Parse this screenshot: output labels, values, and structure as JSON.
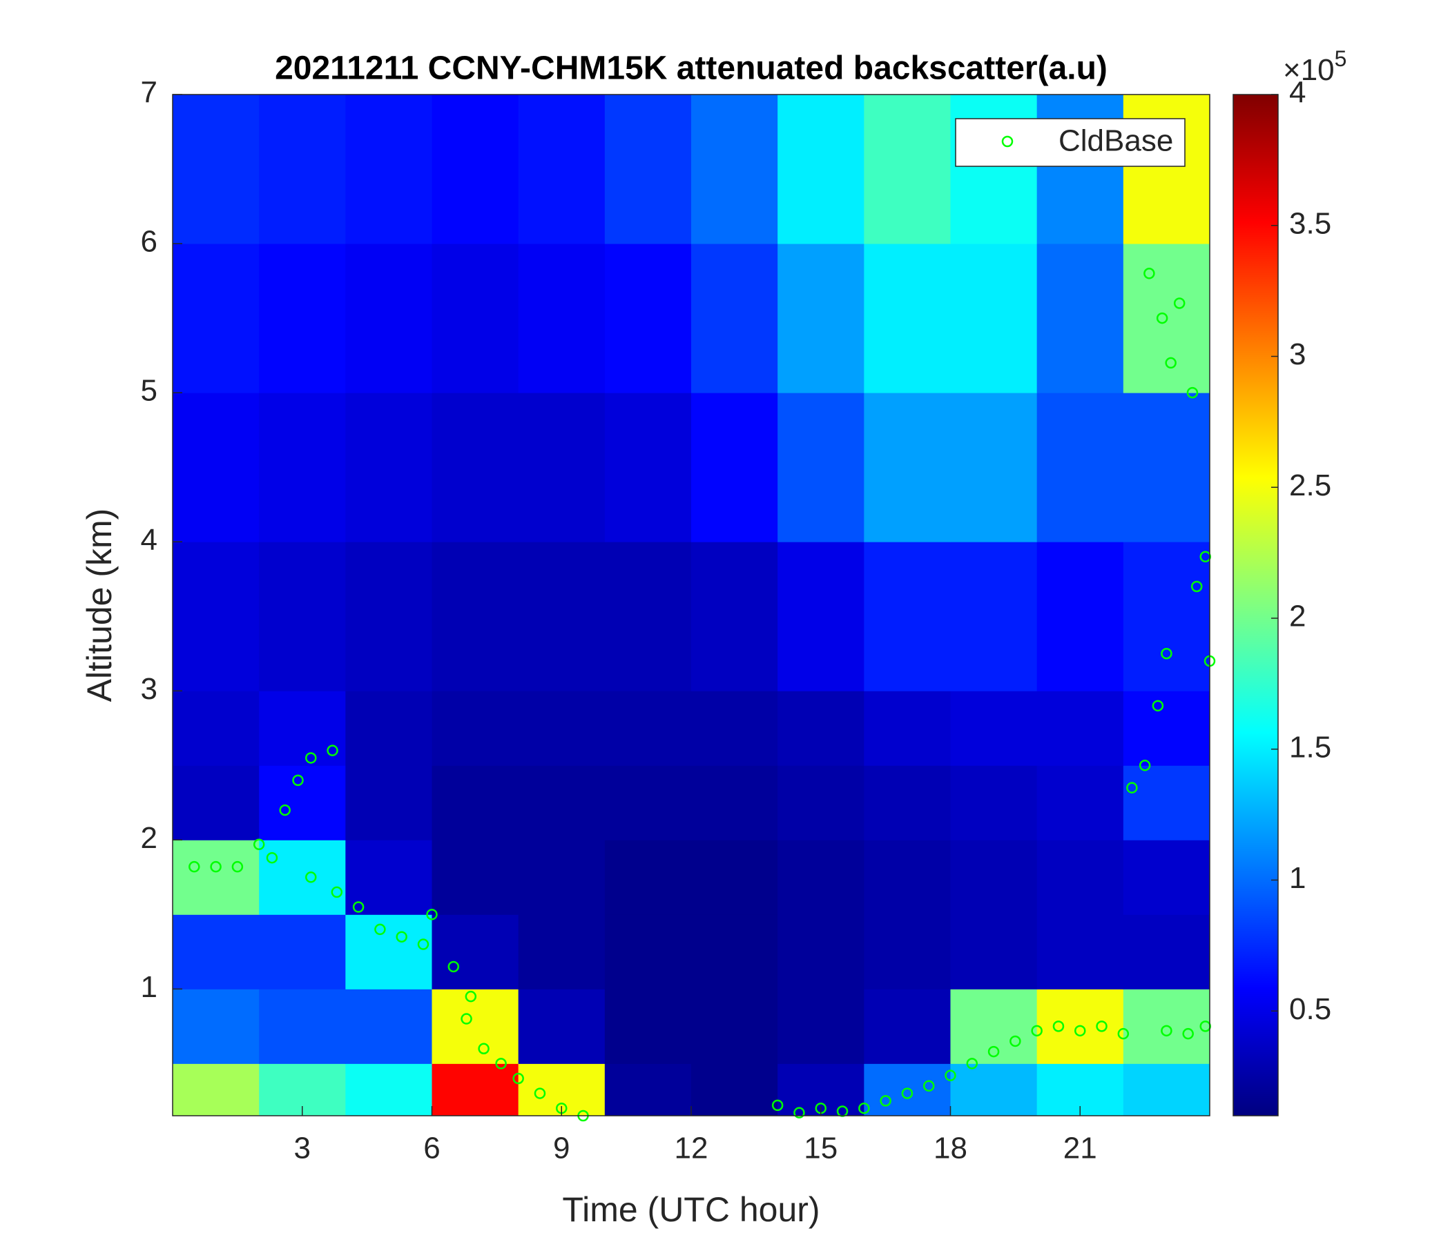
{
  "chart_data": {
    "type": "heatmap",
    "title": "20211211 CCNY-CHM15K attenuated backscatter(a.u)",
    "xlabel": "Time (UTC hour)",
    "ylabel": "Altitude (km)",
    "xlim": [
      0,
      24
    ],
    "ylim": [
      0.15,
      7
    ],
    "xticks": [
      3,
      6,
      9,
      12,
      15,
      18,
      21
    ],
    "yticks": [
      1,
      2,
      3,
      4,
      5,
      6,
      7
    ],
    "colormap": "jet",
    "clim": [
      0.1,
      4
    ],
    "cticks": [
      0.5,
      1,
      1.5,
      2,
      2.5,
      3,
      3.5,
      4
    ],
    "colorbar_scale": {
      "base": "×10",
      "exponent": "5"
    },
    "x_edges": [
      0,
      2,
      4,
      6,
      8,
      10,
      12,
      14,
      16,
      18,
      20,
      22,
      24
    ],
    "y_edges": [
      0.15,
      0.5,
      1,
      1.5,
      2,
      2.5,
      3,
      4,
      5,
      6,
      7
    ],
    "z": [
      [
        2.2,
        1.8,
        1.6,
        3.5,
        2.5,
        0.2,
        0.15,
        0.3,
        1.0,
        1.3,
        1.5,
        1.4
      ],
      [
        1.0,
        0.9,
        0.9,
        2.5,
        0.3,
        0.15,
        0.15,
        0.2,
        0.3,
        2.0,
        2.5,
        2.0
      ],
      [
        0.8,
        0.8,
        1.5,
        0.3,
        0.2,
        0.15,
        0.15,
        0.2,
        0.25,
        0.3,
        0.35,
        0.35
      ],
      [
        2.0,
        1.5,
        0.4,
        0.2,
        0.2,
        0.15,
        0.15,
        0.2,
        0.25,
        0.3,
        0.35,
        0.4
      ],
      [
        0.35,
        0.6,
        0.3,
        0.2,
        0.2,
        0.2,
        0.2,
        0.25,
        0.3,
        0.35,
        0.4,
        0.8
      ],
      [
        0.4,
        0.5,
        0.3,
        0.25,
        0.25,
        0.25,
        0.25,
        0.3,
        0.4,
        0.45,
        0.45,
        0.6
      ],
      [
        0.45,
        0.4,
        0.35,
        0.3,
        0.3,
        0.3,
        0.35,
        0.5,
        0.7,
        0.7,
        0.6,
        0.7
      ],
      [
        0.55,
        0.5,
        0.45,
        0.4,
        0.4,
        0.45,
        0.6,
        0.9,
        1.2,
        1.2,
        0.9,
        0.9
      ],
      [
        0.65,
        0.6,
        0.55,
        0.5,
        0.55,
        0.6,
        0.8,
        1.2,
        1.5,
        1.5,
        1.0,
        2.0
      ],
      [
        0.75,
        0.7,
        0.65,
        0.6,
        0.65,
        0.8,
        1.0,
        1.5,
        1.8,
        1.6,
        1.1,
        2.5
      ]
    ],
    "legend": "upper right",
    "series": [
      {
        "name": "CldBase",
        "type": "scatter",
        "color": "#00ff00",
        "x": [
          0.5,
          1,
          1.5,
          2,
          2.3,
          2.6,
          2.9,
          3.2,
          3.7,
          3.2,
          3.8,
          4.3,
          4.8,
          5.3,
          5.8,
          6.0,
          6.5,
          6.9,
          6.8,
          7.2,
          7.6,
          8.0,
          8.5,
          9.0,
          9.5,
          14,
          14.5,
          15,
          15.5,
          16,
          16.5,
          17,
          17.5,
          18,
          18.5,
          19,
          19.5,
          20,
          20.5,
          21,
          21.5,
          22,
          22.2,
          22.5,
          22.8,
          23.0,
          22.6,
          22.9,
          23.1,
          23.3,
          23.6,
          23.7,
          23.9,
          24.0,
          23.0,
          23.5,
          23.9
        ],
        "y": [
          1.82,
          1.82,
          1.82,
          1.97,
          1.88,
          2.2,
          2.4,
          2.55,
          2.6,
          1.75,
          1.65,
          1.55,
          1.4,
          1.35,
          1.3,
          1.5,
          1.15,
          0.95,
          0.8,
          0.6,
          0.5,
          0.4,
          0.3,
          0.2,
          0.15,
          0.22,
          0.17,
          0.2,
          0.18,
          0.2,
          0.25,
          0.3,
          0.35,
          0.42,
          0.5,
          0.58,
          0.65,
          0.72,
          0.75,
          0.72,
          0.75,
          0.7,
          2.35,
          2.5,
          2.9,
          3.25,
          5.8,
          5.5,
          5.2,
          5.6,
          5.0,
          3.7,
          3.9,
          3.2,
          0.72,
          0.7,
          0.75
        ]
      }
    ]
  }
}
